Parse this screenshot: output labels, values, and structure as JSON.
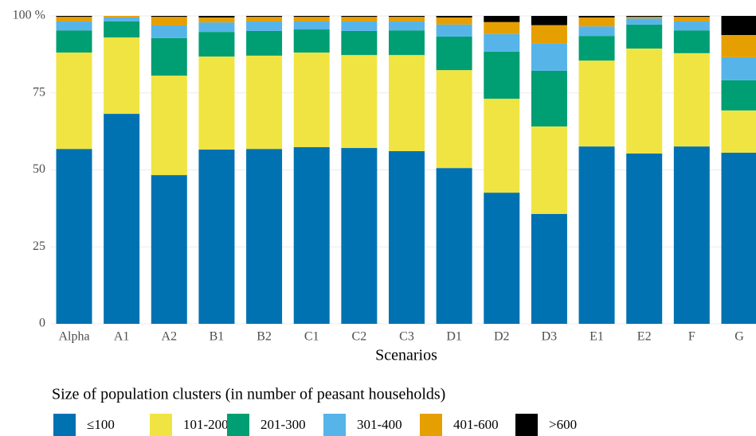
{
  "chart_data": {
    "type": "stacked_bar",
    "x_label": "Scenarios",
    "legend_title": "Size of population clusters (in number of peasant households)",
    "categories": [
      "Alpha",
      "A1",
      "A2",
      "B1",
      "B2",
      "C1",
      "C2",
      "C3",
      "D1",
      "D2",
      "D3",
      "E1",
      "E2",
      "F",
      "G"
    ],
    "series": [
      {
        "name": "≤100",
        "color": "#0072b2",
        "values": [
          56.8,
          68.2,
          48.3,
          56.6,
          56.8,
          57.4,
          57.1,
          56.1,
          50.6,
          42.6,
          35.7,
          57.6,
          55.3,
          57.6,
          55.6
        ]
      },
      {
        "name": "101-200",
        "color": "#f0e442",
        "values": [
          31.3,
          24.8,
          32.3,
          30.2,
          30.3,
          30.7,
          30.2,
          31.2,
          31.8,
          30.5,
          28.4,
          27.9,
          34.1,
          30.3,
          13.7
        ]
      },
      {
        "name": "201-300",
        "color": "#009e73",
        "values": [
          7.2,
          5.2,
          12.2,
          8.0,
          8.0,
          7.5,
          7.8,
          8.0,
          10.9,
          15.3,
          18.1,
          8.0,
          7.8,
          7.4,
          9.8
        ]
      },
      {
        "name": "301-400",
        "color": "#56b4e9",
        "values": [
          2.9,
          1.3,
          4.1,
          3.1,
          3.1,
          2.6,
          3.1,
          2.9,
          3.9,
          5.7,
          8.8,
          3.1,
          2.0,
          2.9,
          7.5
        ]
      },
      {
        "name": "401-600",
        "color": "#e69f00",
        "values": [
          1.5,
          0.5,
          2.8,
          1.6,
          1.5,
          1.5,
          1.5,
          1.5,
          2.3,
          3.9,
          6.0,
          2.9,
          0.5,
          1.5,
          7.2
        ]
      },
      {
        "name": ">600",
        "color": "#000000",
        "values": [
          0.3,
          0,
          0.3,
          0.5,
          0.3,
          0.3,
          0.3,
          0.3,
          0.5,
          2.0,
          3.0,
          0.5,
          0.3,
          0.3,
          6.2
        ]
      }
    ],
    "ylim": [
      0,
      100
    ],
    "yticks": [
      0,
      25,
      50,
      75,
      {
        "value": 100,
        "label": "100 %"
      }
    ],
    "grid": true,
    "legend_position": "bottom"
  }
}
